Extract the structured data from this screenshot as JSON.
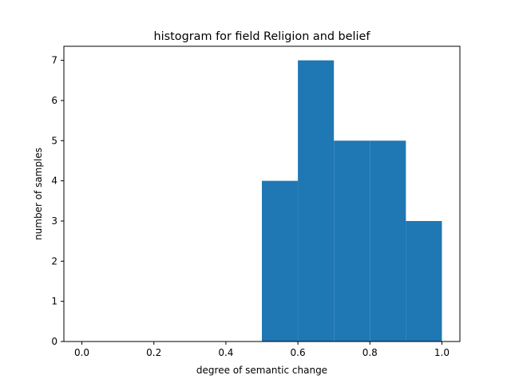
{
  "chart_data": {
    "type": "bar",
    "title": "histogram for field Religion and belief",
    "xlabel": "degree of semantic change",
    "ylabel": "number of samples",
    "bins": [
      {
        "start": 0.5,
        "end": 0.6,
        "count": 4
      },
      {
        "start": 0.6,
        "end": 0.7,
        "count": 7
      },
      {
        "start": 0.7,
        "end": 0.8,
        "count": 5
      },
      {
        "start": 0.8,
        "end": 0.9,
        "count": 5
      },
      {
        "start": 0.9,
        "end": 1.0,
        "count": 3
      }
    ],
    "xlim": [
      -0.05,
      1.05
    ],
    "ylim": [
      0,
      7.35
    ],
    "xticks": [
      0.0,
      0.2,
      0.4,
      0.6,
      0.8,
      1.0
    ],
    "xtick_labels": [
      "0.0",
      "0.2",
      "0.4",
      "0.6",
      "0.8",
      "1.0"
    ],
    "yticks": [
      0,
      1,
      2,
      3,
      4,
      5,
      6,
      7
    ],
    "ytick_labels": [
      "0",
      "1",
      "2",
      "3",
      "4",
      "5",
      "6",
      "7"
    ],
    "bar_color": "#1f77b4",
    "grid": false,
    "legend": null
  }
}
